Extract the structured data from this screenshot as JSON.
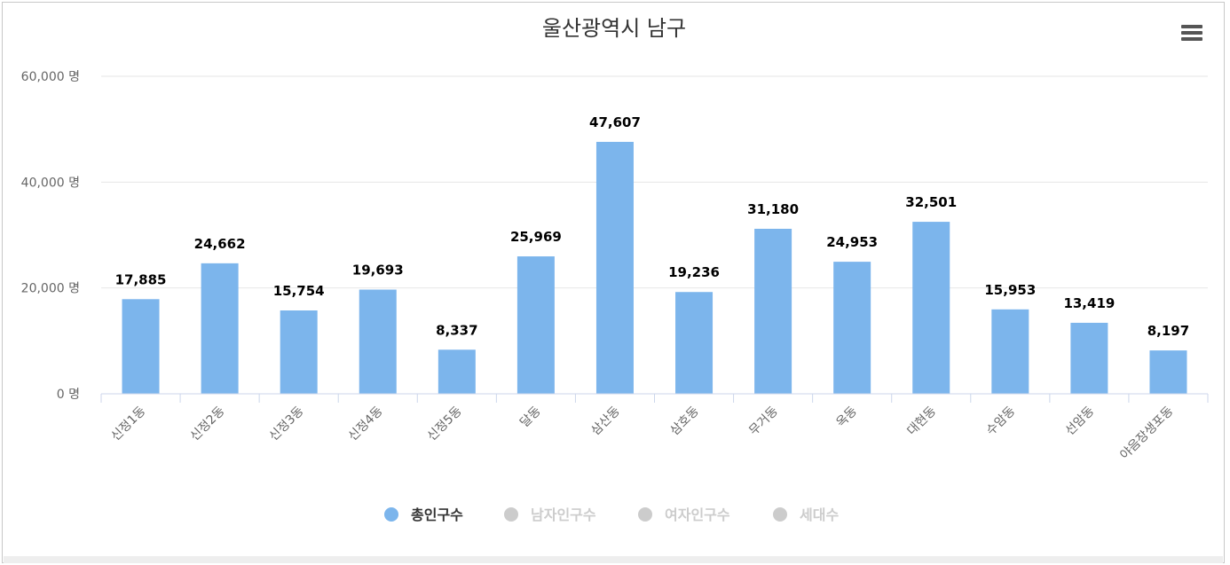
{
  "chart_data": {
    "type": "bar",
    "title": "울산광역시 남구",
    "categories": [
      "신정1동",
      "신정2동",
      "신정3동",
      "신정4동",
      "신정5동",
      "달동",
      "삼산동",
      "삼호동",
      "무거동",
      "옥동",
      "대현동",
      "수암동",
      "선암동",
      "야음장생포동"
    ],
    "series": [
      {
        "name": "총인구수",
        "color": "#7cb5ec",
        "visible": true,
        "values": [
          17885,
          24662,
          15754,
          19693,
          8337,
          25969,
          47607,
          19236,
          31180,
          24953,
          32501,
          15953,
          13419,
          8197
        ],
        "labels": [
          "17,885",
          "24,662",
          "15,754",
          "19,693",
          "8,337",
          "25,969",
          "47,607",
          "19,236",
          "31,180",
          "24,953",
          "32,501",
          "15,953",
          "13,419",
          "8,197"
        ]
      },
      {
        "name": "남자인구수",
        "color": "#cccccc",
        "visible": false
      },
      {
        "name": "여자인구수",
        "color": "#cccccc",
        "visible": false
      },
      {
        "name": "세대수",
        "color": "#cccccc",
        "visible": false
      }
    ],
    "y_ticks": [
      0,
      20000,
      40000,
      60000
    ],
    "y_tick_labels": [
      "0 명",
      "20,000 명",
      "40,000 명",
      "60,000 명"
    ],
    "ylim": [
      0,
      60000
    ],
    "grid": true,
    "legend_position": "bottom-center"
  },
  "menu_icon": "hamburger-menu-icon"
}
